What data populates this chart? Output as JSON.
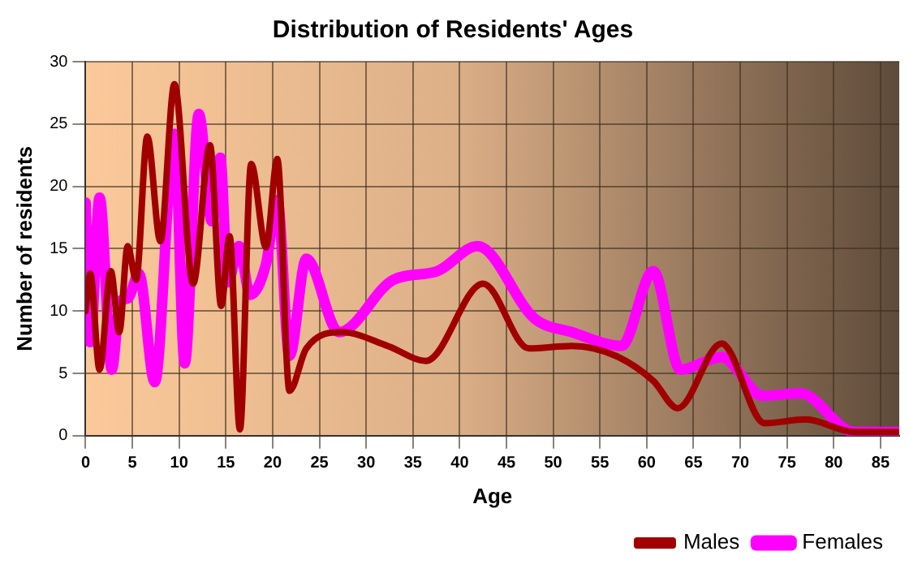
{
  "chart_data": {
    "type": "line",
    "title": "Distribution of Residents' Ages",
    "xlabel": "Age",
    "ylabel": "Number of residents",
    "xlim": [
      0,
      87
    ],
    "xticks": [
      0,
      5,
      10,
      15,
      20,
      25,
      30,
      35,
      40,
      45,
      50,
      55,
      60,
      65,
      70,
      75,
      80,
      85
    ],
    "ylim": [
      0,
      30
    ],
    "yticks": [
      0,
      5,
      10,
      15,
      20,
      25,
      30
    ],
    "grid": true,
    "legend": "bottom right",
    "marker": "none",
    "line_style": "solid",
    "series": [
      {
        "name": "Males",
        "color": "#a00000",
        "x": [
          0,
          0.5,
          1.5,
          2.7,
          3.6,
          4.5,
          5.4,
          6.6,
          8,
          9.5,
          11.5,
          13.3,
          14.5,
          15.4,
          16.5,
          17.7,
          19.3,
          20.5,
          21.8,
          23.6,
          27.4,
          32.3,
          36.4,
          42.5,
          47.4,
          52,
          56.7,
          60.7,
          63.3,
          68,
          72.6,
          77,
          82.2,
          86.8
        ],
        "values": [
          10,
          13,
          5.3,
          13.2,
          8.3,
          15.2,
          12.5,
          24,
          15.6,
          28.2,
          12.2,
          23.3,
          10.4,
          16,
          0.5,
          21.8,
          15.1,
          22.2,
          3.6,
          7,
          8.3,
          7.2,
          6,
          12.2,
          7,
          7.2,
          6.4,
          4.4,
          2.2,
          7.4,
          1,
          1.3,
          0.3,
          0.3
        ]
      },
      {
        "name": "Females",
        "color": "#ff00ff",
        "x": [
          0,
          0.5,
          1.5,
          2.8,
          3.7,
          4.5,
          5.7,
          7.4,
          9.5,
          10.6,
          12.1,
          13.5,
          14.4,
          15.2,
          16.4,
          17.6,
          19.3,
          20.5,
          21.8,
          23.6,
          27.1,
          32.9,
          37.6,
          41.9,
          48,
          52,
          57.3,
          60.7,
          63.6,
          68,
          72.4,
          76.4,
          82.2,
          86.8
        ],
        "values": [
          18.7,
          7.5,
          19.1,
          5.3,
          10.8,
          11,
          13,
          4.3,
          24.2,
          5.8,
          25.8,
          17.2,
          22.3,
          12.3,
          15.2,
          11.3,
          13.8,
          18.9,
          6.4,
          14.2,
          8.3,
          12.5,
          13.2,
          15.2,
          9.4,
          8.3,
          7.2,
          13.2,
          5.3,
          6.3,
          3.2,
          3.4,
          0.3,
          0.3
        ]
      }
    ]
  }
}
